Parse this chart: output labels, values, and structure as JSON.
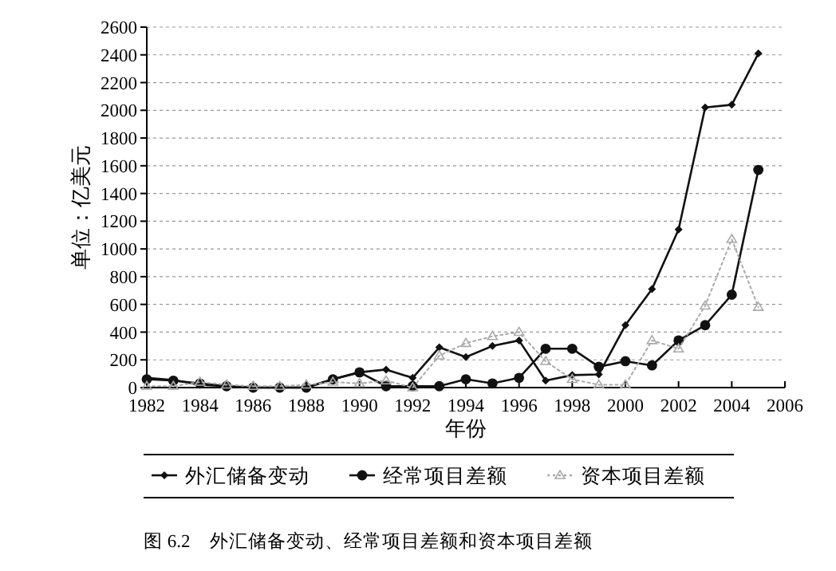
{
  "chart_data": {
    "type": "line",
    "title": "图 6.2　外汇储备变动、经常项目差额和资本项目差额",
    "xlabel": "年份",
    "ylabel": "单位：亿美元",
    "x": [
      1982,
      1983,
      1984,
      1985,
      1986,
      1987,
      1988,
      1989,
      1990,
      1991,
      1992,
      1993,
      1994,
      1995,
      1996,
      1997,
      1998,
      1999,
      2000,
      2001,
      2002,
      2003,
      2004,
      2005
    ],
    "series": [
      {
        "name": "外汇储备变动",
        "color": "#111111",
        "marker": "diamond",
        "line_style": "solid",
        "values": [
          70,
          55,
          20,
          10,
          0,
          0,
          0,
          60,
          110,
          130,
          70,
          290,
          220,
          300,
          340,
          50,
          90,
          95,
          450,
          710,
          1140,
          2020,
          2040,
          2410
        ]
      },
      {
        "name": "经常项目差额",
        "color": "#111111",
        "marker": "circle",
        "line_style": "solid",
        "values": [
          60,
          50,
          30,
          10,
          0,
          0,
          0,
          60,
          110,
          10,
          10,
          10,
          60,
          30,
          70,
          280,
          280,
          150,
          190,
          160,
          340,
          450,
          670,
          1570
        ]
      },
      {
        "name": "资本项目差额",
        "color": "#aaaaaa",
        "marker": "triangle",
        "line_style": "dotted",
        "values": [
          10,
          10,
          40,
          20,
          10,
          10,
          20,
          40,
          30,
          50,
          0,
          230,
          320,
          370,
          400,
          190,
          60,
          20,
          20,
          340,
          280,
          590,
          1070,
          580
        ]
      }
    ],
    "xlim": [
      1982,
      2006
    ],
    "xticks": [
      1982,
      1984,
      1986,
      1988,
      1990,
      1992,
      1994,
      1996,
      1998,
      2000,
      2002,
      2004,
      2006
    ],
    "ylim": [
      0,
      2600
    ],
    "yticks": [
      0,
      200,
      400,
      600,
      800,
      1000,
      1200,
      1400,
      1600,
      1800,
      2000,
      2200,
      2400,
      2600
    ],
    "grid": "y",
    "legend": "bottom"
  }
}
